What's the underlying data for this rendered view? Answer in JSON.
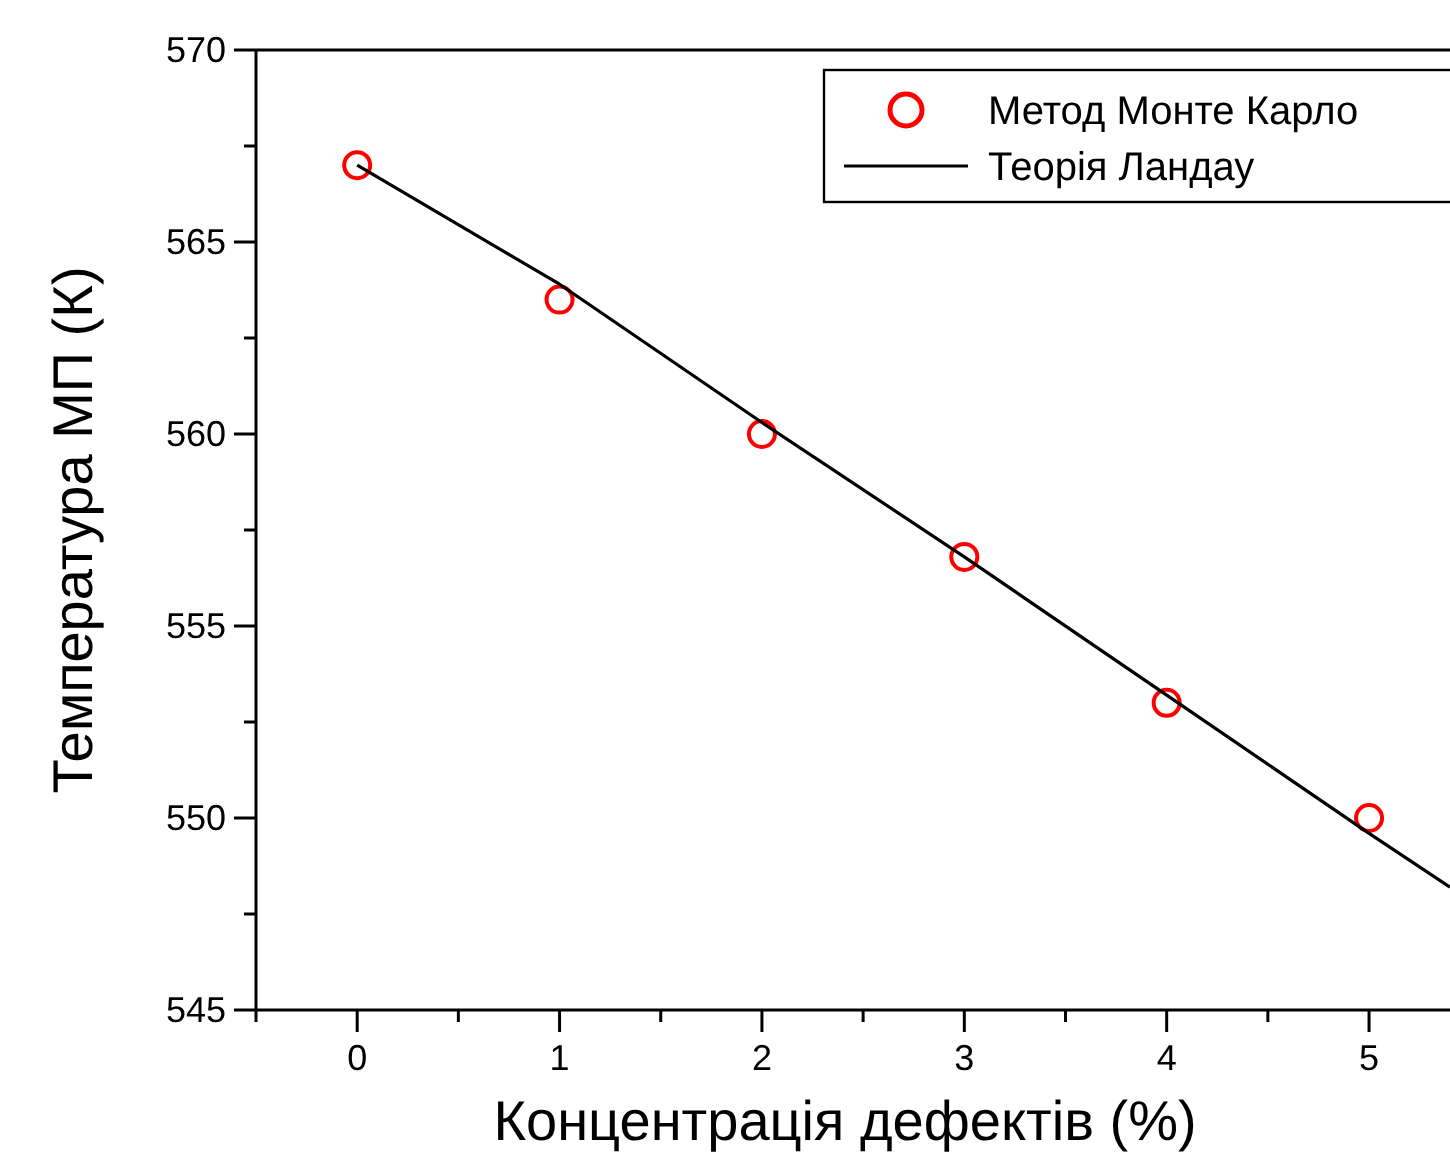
{
  "chart_data": {
    "type": "scatter",
    "xlabel": "Концентрація дефектів (%)",
    "ylabel": "Температура МП (К)",
    "xlim": [
      -0.5,
      5.4
    ],
    "ylim": [
      545,
      570
    ],
    "xticks": [
      {
        "value": -0.5,
        "label": null
      },
      0,
      {
        "value": 0.5,
        "label": null
      },
      1,
      {
        "value": 1.5,
        "label": null
      },
      2,
      {
        "value": 2.5,
        "label": null
      },
      3,
      {
        "value": 3.5,
        "label": null
      },
      4,
      {
        "value": 4.5,
        "label": null
      },
      5
    ],
    "yticks": [
      545,
      {
        "value": 547.5,
        "label": null
      },
      550,
      {
        "value": 552.5,
        "label": null
      },
      555,
      {
        "value": 557.5,
        "label": null
      },
      560,
      {
        "value": 562.5,
        "label": null
      },
      565,
      {
        "value": 567.5,
        "label": null
      },
      570
    ],
    "grid": false,
    "legend": "top right",
    "series": [
      {
        "name": "Метод Монте Карло",
        "color": "#ff0000",
        "marker": "circle",
        "x": [
          0,
          1,
          2,
          3,
          4,
          5
        ],
        "values": [
          567,
          563.5,
          560,
          556.8,
          553,
          550
        ]
      },
      {
        "name": "Теорія Ландау",
        "type": "line",
        "color": "#000000",
        "marker": "none",
        "line_style": "solid",
        "x": [
          0,
          1,
          2,
          3,
          4,
          5,
          5.4
        ],
        "values": [
          567,
          563.9,
          560.3,
          556.8,
          553.2,
          549.6,
          548.2
        ]
      }
    ]
  }
}
